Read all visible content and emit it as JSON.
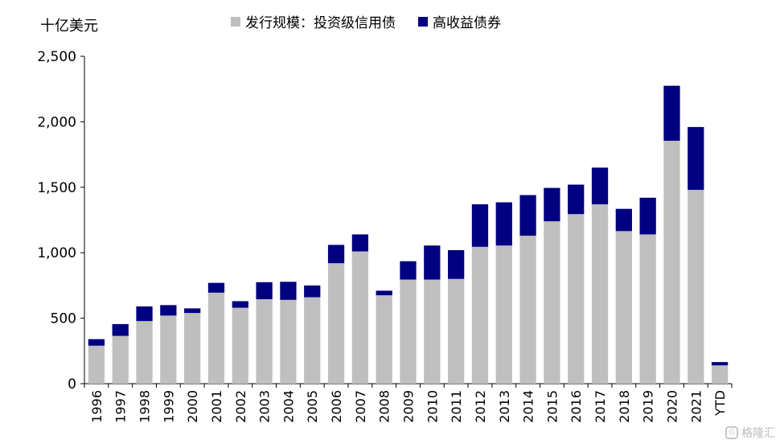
{
  "unit_label": "十亿美元",
  "legend": {
    "investment_grade": "发行规模：投资级信用债",
    "high_yield": "高收益债券"
  },
  "watermark": "格隆汇",
  "colors": {
    "investment_grade": "#bfbfbf",
    "high_yield": "#000080",
    "axis": "#000000"
  },
  "chart_data": {
    "type": "bar",
    "stacked": true,
    "categories": [
      "1996",
      "1997",
      "1998",
      "1999",
      "2000",
      "2001",
      "2002",
      "2003",
      "2004",
      "2005",
      "2006",
      "2007",
      "2008",
      "2009",
      "2010",
      "2011",
      "2012",
      "2013",
      "2014",
      "2015",
      "2016",
      "2017",
      "2018",
      "2019",
      "2020",
      "2021",
      "YTD"
    ],
    "series": [
      {
        "name": "发行规模：投资级信用债",
        "values": [
          290,
          365,
          478,
          520,
          540,
          695,
          580,
          645,
          640,
          660,
          920,
          1010,
          675,
          795,
          795,
          800,
          1045,
          1055,
          1130,
          1240,
          1295,
          1370,
          1165,
          1140,
          1855,
          1480,
          140
        ]
      },
      {
        "name": "高收益债券",
        "values": [
          50,
          90,
          112,
          80,
          35,
          75,
          50,
          130,
          138,
          90,
          140,
          130,
          35,
          140,
          260,
          220,
          325,
          330,
          310,
          255,
          225,
          280,
          170,
          280,
          420,
          480,
          25
        ]
      }
    ],
    "ylim": [
      0,
      2500
    ],
    "yticks": [
      0,
      500,
      1000,
      1500,
      2000,
      2500
    ],
    "ytick_labels": [
      "0",
      "500",
      "1,000",
      "1,500",
      "2,000",
      "2,500"
    ],
    "grid": false,
    "legend_position": "top"
  }
}
